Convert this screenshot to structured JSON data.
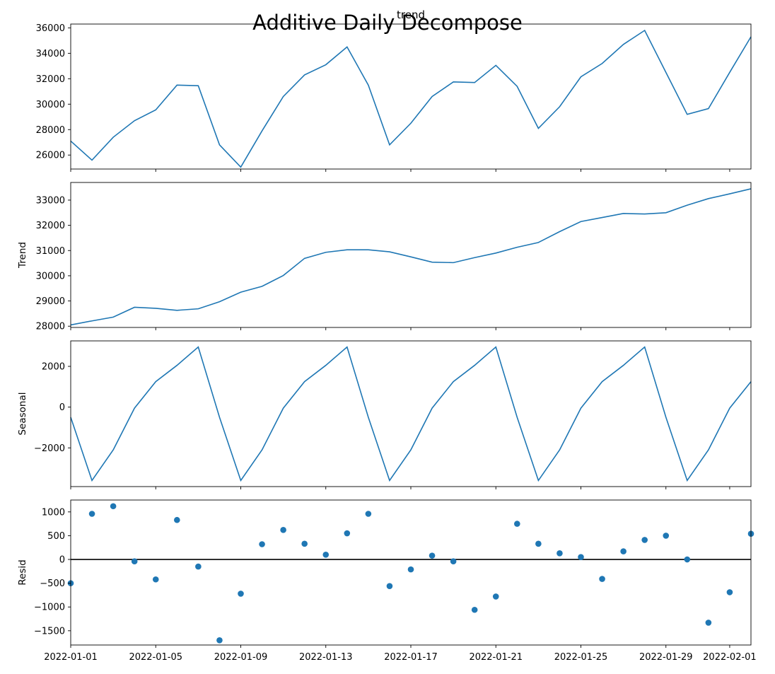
{
  "figure": {
    "suptitle": "Additive Daily Decompose",
    "line_color": "#1f77b4",
    "zero_line_color": "#000000"
  },
  "chart_data": [
    {
      "type": "line",
      "title": "trend",
      "ylabel": "",
      "x": [
        "2022-01-01",
        "2022-01-02",
        "2022-01-03",
        "2022-01-04",
        "2022-01-05",
        "2022-01-06",
        "2022-01-07",
        "2022-01-08",
        "2022-01-09",
        "2022-01-10",
        "2022-01-11",
        "2022-01-12",
        "2022-01-13",
        "2022-01-14",
        "2022-01-15",
        "2022-01-16",
        "2022-01-17",
        "2022-01-18",
        "2022-01-19",
        "2022-01-20",
        "2022-01-21",
        "2022-01-22",
        "2022-01-23",
        "2022-01-24",
        "2022-01-25",
        "2022-01-26",
        "2022-01-27",
        "2022-01-28",
        "2022-01-29",
        "2022-01-30",
        "2022-01-31",
        "2022-02-01",
        "2022-02-02"
      ],
      "values": [
        27100,
        25600,
        27400,
        28700,
        29550,
        31500,
        31450,
        26800,
        25050,
        27900,
        30600,
        32300,
        33100,
        34500,
        31500,
        26800,
        28500,
        30600,
        31750,
        31700,
        33050,
        31400,
        28100,
        29800,
        32150,
        33200,
        34700,
        35800,
        32500,
        29200,
        29650,
        32500,
        35300
      ],
      "ylim": [
        24900,
        36300
      ],
      "yticks": [
        "26000",
        "28000",
        "30000",
        "32000",
        "34000",
        "36000"
      ]
    },
    {
      "type": "line",
      "title": "",
      "ylabel": "Trend",
      "x": [
        "2022-01-01",
        "2022-01-02",
        "2022-01-03",
        "2022-01-04",
        "2022-01-05",
        "2022-01-06",
        "2022-01-07",
        "2022-01-08",
        "2022-01-09",
        "2022-01-10",
        "2022-01-11",
        "2022-01-12",
        "2022-01-13",
        "2022-01-14",
        "2022-01-15",
        "2022-01-16",
        "2022-01-17",
        "2022-01-18",
        "2022-01-19",
        "2022-01-20",
        "2022-01-21",
        "2022-01-22",
        "2022-01-23",
        "2022-01-24",
        "2022-01-25",
        "2022-01-26",
        "2022-01-27",
        "2022-01-28",
        "2022-01-29",
        "2022-01-30",
        "2022-01-31",
        "2022-02-01",
        "2022-02-02"
      ],
      "values": [
        28050,
        28210,
        28360,
        28750,
        28710,
        28630,
        28690,
        28970,
        29350,
        29580,
        30010,
        30690,
        30930,
        31030,
        31030,
        30950,
        30750,
        30540,
        30520,
        30720,
        30900,
        31130,
        31320,
        31750,
        32150,
        32310,
        32470,
        32450,
        32500,
        32800,
        33060,
        33250,
        33450
      ],
      "ylim": [
        27950,
        33700
      ],
      "yticks": [
        "28000",
        "29000",
        "30000",
        "31000",
        "32000",
        "33000"
      ]
    },
    {
      "type": "line",
      "title": "",
      "ylabel": "Seasonal",
      "x": [
        "2022-01-01",
        "2022-01-02",
        "2022-01-03",
        "2022-01-04",
        "2022-01-05",
        "2022-01-06",
        "2022-01-07",
        "2022-01-08",
        "2022-01-09",
        "2022-01-10",
        "2022-01-11",
        "2022-01-12",
        "2022-01-13",
        "2022-01-14",
        "2022-01-15",
        "2022-01-16",
        "2022-01-17",
        "2022-01-18",
        "2022-01-19",
        "2022-01-20",
        "2022-01-21",
        "2022-01-22",
        "2022-01-23",
        "2022-01-24",
        "2022-01-25",
        "2022-01-26",
        "2022-01-27",
        "2022-01-28",
        "2022-01-29",
        "2022-01-30",
        "2022-01-31",
        "2022-02-01",
        "2022-02-02"
      ],
      "values": [
        -500,
        -3600,
        -2100,
        -50,
        1250,
        2050,
        2950,
        -500,
        -3600,
        -2100,
        -50,
        1250,
        2050,
        2950,
        -500,
        -3600,
        -2100,
        -50,
        1250,
        2050,
        2950,
        -500,
        -3600,
        -2100,
        -50,
        1250,
        2050,
        2950,
        -500,
        -3600,
        -2100,
        -50,
        1250
      ],
      "ylim": [
        -3900,
        3250
      ],
      "yticks": [
        "−2000",
        "0",
        "2000"
      ]
    },
    {
      "type": "scatter",
      "title": "",
      "ylabel": "Resid",
      "x": [
        "2022-01-01",
        "2022-01-02",
        "2022-01-03",
        "2022-01-04",
        "2022-01-05",
        "2022-01-06",
        "2022-01-07",
        "2022-01-08",
        "2022-01-09",
        "2022-01-10",
        "2022-01-11",
        "2022-01-12",
        "2022-01-13",
        "2022-01-14",
        "2022-01-15",
        "2022-01-16",
        "2022-01-17",
        "2022-01-18",
        "2022-01-19",
        "2022-01-20",
        "2022-01-21",
        "2022-01-22",
        "2022-01-23",
        "2022-01-24",
        "2022-01-25",
        "2022-01-26",
        "2022-01-27",
        "2022-01-28",
        "2022-01-29",
        "2022-01-30",
        "2022-01-31",
        "2022-02-01",
        "2022-02-02"
      ],
      "values": [
        -500,
        960,
        1120,
        -40,
        -420,
        830,
        -150,
        -1700,
        -720,
        320,
        620,
        330,
        100,
        550,
        960,
        -560,
        -210,
        80,
        -40,
        -1060,
        -780,
        750,
        330,
        130,
        50,
        -410,
        170,
        410,
        500,
        0,
        -1330,
        -690,
        540
      ],
      "hline": 0,
      "ylim": [
        -1800,
        1250
      ],
      "yticks": [
        "−1500",
        "−1000",
        "−500",
        "0",
        "500",
        "1000"
      ]
    }
  ],
  "x_axis": {
    "tick_dates": [
      "2022-01-01",
      "2022-01-05",
      "2022-01-09",
      "2022-01-13",
      "2022-01-17",
      "2022-01-21",
      "2022-01-25",
      "2022-01-29",
      "2022-02-01"
    ],
    "tick_labels": [
      "2022-01-01",
      "2022-01-05",
      "2022-01-09",
      "2022-01-13",
      "2022-01-17",
      "2022-01-21",
      "2022-01-25",
      "2022-01-29",
      "2022-02-01"
    ]
  }
}
